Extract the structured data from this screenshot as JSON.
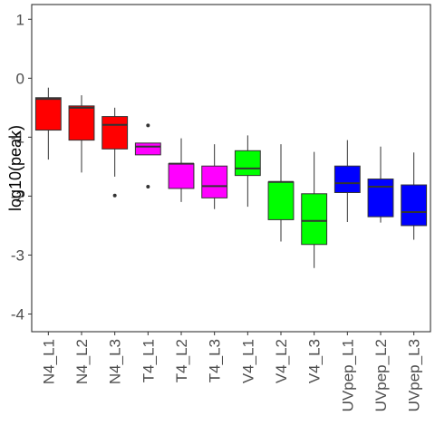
{
  "chart_data": {
    "type": "box",
    "title": "",
    "xlabel": "",
    "ylabel": "log10(peak)",
    "ylim": [
      -4.3,
      1.25
    ],
    "yticks": [
      -4,
      -3,
      -2,
      -1,
      0,
      1
    ],
    "ytick_labels": [
      "-4",
      "-3",
      "-2",
      "-1",
      "0",
      "1"
    ],
    "grid": false,
    "legend": "none",
    "categories": [
      "N4_L1",
      "N4_L2",
      "N4_L3",
      "T4_L1",
      "T4_L2",
      "T4_L3",
      "V4_L1",
      "V4_L2",
      "V4_L3",
      "UVpep_L1",
      "UVpep_L2",
      "UVpep_L3"
    ],
    "boxes": [
      {
        "name": "N4_L1",
        "color": "#FF0000",
        "whisker_low": -1.38,
        "q1": -0.88,
        "median": -0.35,
        "q3": -0.33,
        "whisker_high": -0.16,
        "outliers": []
      },
      {
        "name": "N4_L2",
        "color": "#FF0000",
        "whisker_low": -1.6,
        "q1": -1.05,
        "median": -0.5,
        "q3": -0.47,
        "whisker_high": -0.29,
        "outliers": []
      },
      {
        "name": "N4_L3",
        "color": "#FF0000",
        "whisker_low": -1.67,
        "q1": -1.2,
        "median": -0.79,
        "q3": -0.65,
        "whisker_high": -0.5,
        "outliers": [
          -1.99
        ]
      },
      {
        "name": "T4_L1",
        "color": "#FF00FF",
        "whisker_low": -1.3,
        "q1": -1.3,
        "median": -1.16,
        "q3": -1.1,
        "whisker_high": -1.1,
        "outliers": [
          -0.8,
          -1.84
        ]
      },
      {
        "name": "T4_L2",
        "color": "#FF00FF",
        "whisker_low": -2.1,
        "q1": -1.87,
        "median": -1.45,
        "q3": -1.45,
        "whisker_high": -1.02,
        "outliers": []
      },
      {
        "name": "T4_L3",
        "color": "#FF00FF",
        "whisker_low": -2.22,
        "q1": -2.03,
        "median": -1.83,
        "q3": -1.49,
        "whisker_high": -1.12,
        "outliers": []
      },
      {
        "name": "V4_L1",
        "color": "#00FF00",
        "whisker_low": -2.18,
        "q1": -1.65,
        "median": -1.53,
        "q3": -1.23,
        "whisker_high": -0.97,
        "outliers": []
      },
      {
        "name": "V4_L2",
        "color": "#00FF00",
        "whisker_low": -2.77,
        "q1": -2.4,
        "median": -1.76,
        "q3": -1.76,
        "whisker_high": -1.12,
        "outliers": []
      },
      {
        "name": "V4_L3",
        "color": "#00FF00",
        "whisker_low": -3.22,
        "q1": -2.82,
        "median": -2.42,
        "q3": -1.96,
        "whisker_high": -1.25,
        "outliers": []
      },
      {
        "name": "UVpep_L1",
        "color": "#0000FF",
        "whisker_low": -2.44,
        "q1": -1.94,
        "median": -1.78,
        "q3": -1.49,
        "whisker_high": -1.05,
        "outliers": []
      },
      {
        "name": "UVpep_L2",
        "color": "#0000FF",
        "whisker_low": -2.45,
        "q1": -2.35,
        "median": -1.84,
        "q3": -1.71,
        "whisker_high": -1.16,
        "outliers": []
      },
      {
        "name": "UVpep_L3",
        "color": "#0000FF",
        "whisker_low": -2.74,
        "q1": -2.5,
        "median": -2.27,
        "q3": -1.81,
        "whisker_high": -1.26,
        "outliers": []
      }
    ]
  }
}
